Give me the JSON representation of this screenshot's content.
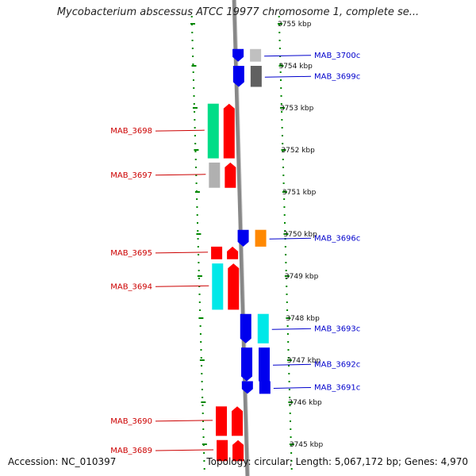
{
  "header": {
    "title": "Mycobacterium abscessus ATCC 19977 chromosome 1, complete se..."
  },
  "footer": {
    "accession": "Accession: NC_010397",
    "summary": "Topology: circular; Length: 5,067,172 bp; Genes: 4,970"
  },
  "colors": {
    "left_label": "#cc0000",
    "right_label": "#0000cc",
    "backbone": "#888888",
    "tick": "#008800"
  },
  "ticks": [
    {
      "label": "3755 kbp",
      "kbp": 3755
    },
    {
      "label": "3754 kbp",
      "kbp": 3754
    },
    {
      "label": "3753 kbp",
      "kbp": 3753
    },
    {
      "label": "3752 kbp",
      "kbp": 3752
    },
    {
      "label": "3751 kbp",
      "kbp": 3751
    },
    {
      "label": "3750 kbp",
      "kbp": 3750
    },
    {
      "label": "3749 kbp",
      "kbp": 3749
    },
    {
      "label": "3748 kbp",
      "kbp": 3748
    },
    {
      "label": "3747 kbp",
      "kbp": 3747
    },
    {
      "label": "3746 kbp",
      "kbp": 3746
    },
    {
      "label": "3745 kbp",
      "kbp": 3745
    }
  ],
  "genes_left": [
    {
      "label": "MAB_3698",
      "start_kbp": 3753.1,
      "end_kbp": 3751.8,
      "color": "#00dd88"
    },
    {
      "label": "MAB_3697",
      "start_kbp": 3751.7,
      "end_kbp": 3751.1,
      "color": "#b0b0b0"
    },
    {
      "label": "MAB_3695",
      "start_kbp": 3749.7,
      "end_kbp": 3749.4,
      "color": "#ff0000"
    },
    {
      "label": "MAB_3694",
      "start_kbp": 3749.3,
      "end_kbp": 3748.2,
      "color": "#00e8e8"
    },
    {
      "label": "MAB_3690",
      "start_kbp": 3745.9,
      "end_kbp": 3745.2,
      "color": "#ff0000"
    },
    {
      "label": "MAB_3689",
      "start_kbp": 3745.1,
      "end_kbp": 3744.6,
      "color": "#ff0000"
    }
  ],
  "genes_right": [
    {
      "label": "MAB_3700c",
      "start_kbp": 3754.4,
      "end_kbp": 3754.1,
      "color": "#c0c0c0"
    },
    {
      "label": "MAB_3699c",
      "start_kbp": 3754.0,
      "end_kbp": 3753.5,
      "color": "#606060"
    },
    {
      "label": "MAB_3696c",
      "start_kbp": 3750.1,
      "end_kbp": 3749.7,
      "color": "#ff8800"
    },
    {
      "label": "MAB_3693c",
      "start_kbp": 3748.1,
      "end_kbp": 3747.4,
      "color": "#00e8e8"
    },
    {
      "label": "MAB_3692c",
      "start_kbp": 3747.3,
      "end_kbp": 3746.5,
      "color": "#0000ee"
    },
    {
      "label": "MAB_3691c",
      "start_kbp": 3746.5,
      "end_kbp": 3746.2,
      "color": "#0000ee"
    }
  ]
}
